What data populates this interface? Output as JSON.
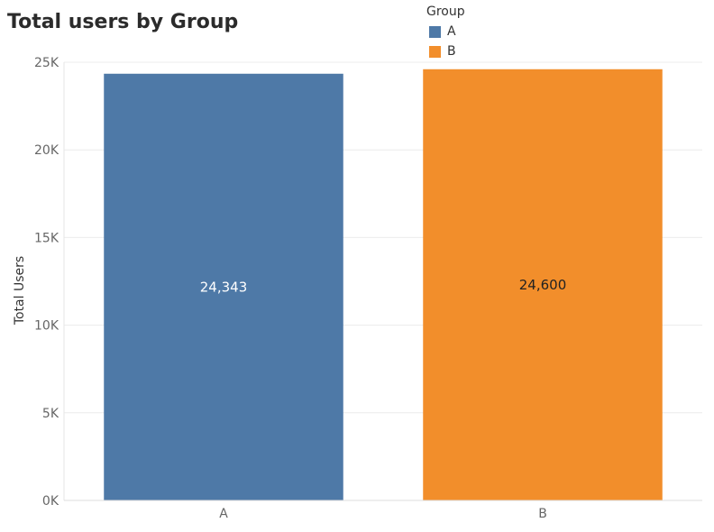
{
  "title": "Total users by Group",
  "legend": {
    "title": "Group",
    "items": [
      {
        "label": "A",
        "color": "#4e79a7"
      },
      {
        "label": "B",
        "color": "#f28e2b"
      }
    ]
  },
  "chart_data": {
    "type": "bar",
    "title": "Total users by Group",
    "xlabel": "",
    "ylabel": "Total Users",
    "categories": [
      "A",
      "B"
    ],
    "values": [
      24343,
      24600
    ],
    "data_labels": [
      "24,343",
      "24,600"
    ],
    "colors": [
      "#4e79a7",
      "#f28e2b"
    ],
    "label_colors": [
      "#ffffff",
      "#222222"
    ],
    "ylim": [
      0,
      25000
    ],
    "yticks": [
      0,
      5000,
      10000,
      15000,
      20000,
      25000
    ],
    "ytick_labels": [
      "0K",
      "5K",
      "10K",
      "15K",
      "20K",
      "25K"
    ],
    "grid": true,
    "legend_position": "top-right"
  }
}
